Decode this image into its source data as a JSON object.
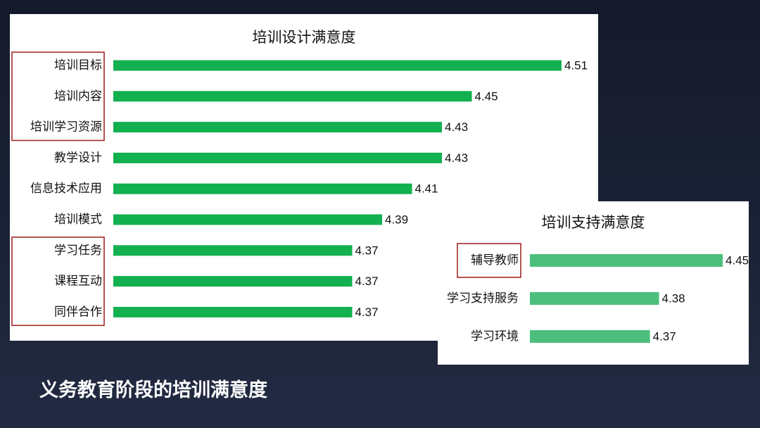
{
  "page_title": "义务教育阶段的培训满意度",
  "colors": {
    "design_bar": "#12b04f",
    "support_bar": "#4cbf7d",
    "highlight_border": "#a32a2a",
    "background": "#1b2236"
  },
  "chart_data": [
    {
      "type": "bar",
      "orientation": "horizontal",
      "title": "培训设计满意度",
      "categories": [
        "培训目标",
        "培训内容",
        "培训学习资源",
        "教学设计",
        "信息技术应用",
        "培训模式",
        "学习任务",
        "课程互动",
        "同伴合作"
      ],
      "values": [
        4.51,
        4.45,
        4.43,
        4.43,
        4.41,
        4.39,
        4.37,
        4.37,
        4.37
      ],
      "value_labels": [
        "4.51",
        "4.45",
        "4.43",
        "4.43",
        "4.41",
        "4.39",
        "4.37",
        "4.37",
        "4.37"
      ],
      "xlim": [
        4.31,
        4.51
      ],
      "highlight_groups": [
        [
          0,
          2
        ],
        [
          6,
          8
        ]
      ],
      "grid": false,
      "legend": "none"
    },
    {
      "type": "bar",
      "orientation": "horizontal",
      "title": "培训支持满意度",
      "categories": [
        "辅导教师",
        "学习支持服务",
        "学习环境"
      ],
      "values": [
        4.45,
        4.38,
        4.37
      ],
      "value_labels": [
        "4.45",
        "4.38",
        "4.37"
      ],
      "xlim": [
        4.32,
        4.45
      ],
      "highlight_groups": [
        [
          0,
          0
        ]
      ],
      "grid": false,
      "legend": "none"
    }
  ]
}
